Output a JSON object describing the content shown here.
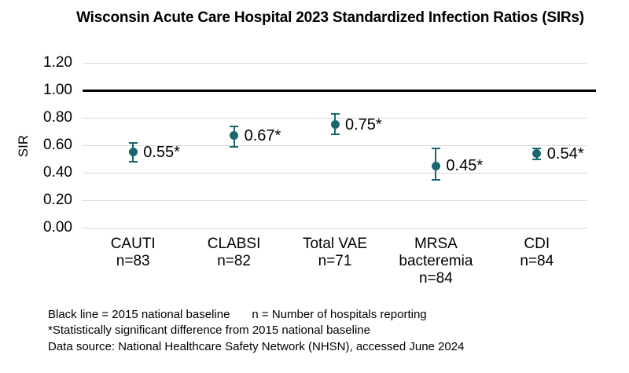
{
  "title": "Wisconsin Acute Care Hospital 2023 Standardized Infection Ratios (SIRs)",
  "colors": {
    "point": "#1A6771",
    "baseline": "#000000",
    "gridline": "#D9D9D9",
    "text": "#000000"
  },
  "chart_data": {
    "type": "scatter",
    "title": "Wisconsin Acute Care Hospital 2023 Standardized Infection Ratios (SIRs)",
    "xlabel": "",
    "ylabel": "SIR",
    "ylim": [
      0,
      1.2
    ],
    "grid": true,
    "legend": "none",
    "baseline_value": 1.0,
    "y_ticks": [
      {
        "value": 0.0,
        "label": "0.00"
      },
      {
        "value": 0.2,
        "label": "0.20"
      },
      {
        "value": 0.4,
        "label": "0.40"
      },
      {
        "value": 0.6,
        "label": "0.60"
      },
      {
        "value": 0.8,
        "label": "0.80"
      },
      {
        "value": 1.0,
        "label": "1.00"
      },
      {
        "value": 1.2,
        "label": "1.20"
      }
    ],
    "categories": [
      {
        "lines": [
          "CAUTI",
          "n=83"
        ],
        "n": 83,
        "sir": 0.55,
        "ci": [
          0.48,
          0.62
        ],
        "label": "0.55*"
      },
      {
        "lines": [
          "CLABSI",
          "n=82"
        ],
        "n": 82,
        "sir": 0.67,
        "ci": [
          0.59,
          0.74
        ],
        "label": "0.67*"
      },
      {
        "lines": [
          "Total VAE",
          "n=71"
        ],
        "n": 71,
        "sir": 0.75,
        "ci": [
          0.68,
          0.83
        ],
        "label": "0.75*"
      },
      {
        "lines": [
          "MRSA",
          "bacteremia",
          "n=84"
        ],
        "n": 84,
        "sir": 0.45,
        "ci": [
          0.35,
          0.58
        ],
        "label": "0.45*"
      },
      {
        "lines": [
          "CDI",
          "n=84"
        ],
        "n": 84,
        "sir": 0.54,
        "ci": [
          0.5,
          0.58
        ],
        "label": "0.54*"
      }
    ]
  },
  "footnotes": {
    "line1a": "Black line = 2015 national baseline",
    "line1b": "n = Number of hospitals reporting",
    "line2": "*Statistically significant difference from 2015 national baseline",
    "line3": "Data source: National Healthcare Safety Network (NHSN), accessed June 2024"
  }
}
